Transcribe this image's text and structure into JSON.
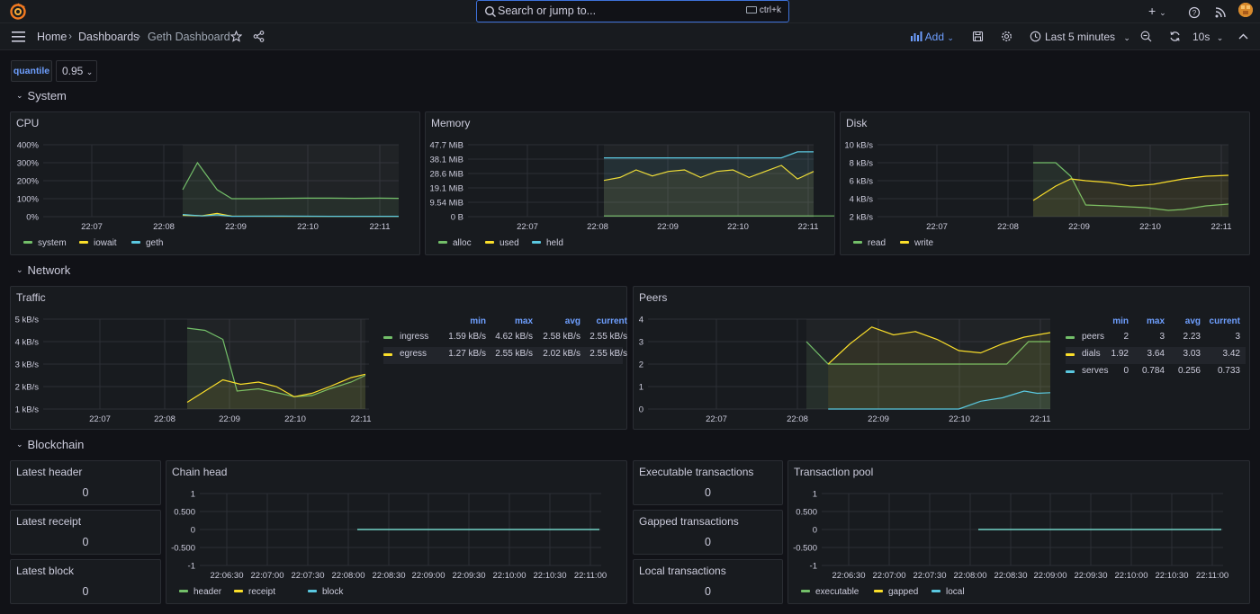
{
  "topbar": {
    "search_placeholder": "Search or jump to...",
    "search_shortcut": "ctrl+k",
    "new_label": "+",
    "help_icon": "help-icon",
    "news_icon": "rss-icon"
  },
  "nav": {
    "breadcrumbs": [
      "Home",
      "Dashboards",
      "Geth Dashboard"
    ],
    "add_label": "Add",
    "time_range": "Last 5 minutes",
    "refresh_interval": "10s"
  },
  "variables": {
    "label": "quantile",
    "value": "0.95"
  },
  "rows": {
    "system": "System",
    "network": "Network",
    "blockchain": "Blockchain"
  },
  "colors": {
    "green": "#73bf69",
    "yellow": "#fade2a",
    "blue": "#8ab8ff",
    "cyan": "#5ac8e0",
    "accent": "#6e9fff"
  },
  "panels": {
    "cpu": {
      "title": "CPU",
      "chart_data": {
        "type": "line",
        "x_ticks": [
          "22:07",
          "22:08",
          "22:09",
          "22:10",
          "22:11"
        ],
        "y_ticks": [
          "400%",
          "300%",
          "200%",
          "100%",
          "0%"
        ],
        "ylim": [
          0,
          400
        ],
        "series": [
          {
            "name": "system",
            "color": "#73bf69",
            "points": [
              [
                0.0,
                150
              ],
              [
                0.3,
                300
              ],
              [
                0.7,
                150
              ],
              [
                1.0,
                100
              ],
              [
                1.5,
                100
              ],
              [
                2,
                102
              ],
              [
                2.5,
                103
              ],
              [
                3,
                103
              ],
              [
                3.5,
                102
              ],
              [
                4,
                103
              ],
              [
                4.4,
                102
              ]
            ]
          },
          {
            "name": "iowait",
            "color": "#fade2a",
            "points": [
              [
                0.0,
                8
              ],
              [
                0.4,
                5
              ],
              [
                0.7,
                18
              ],
              [
                1.0,
                3
              ],
              [
                2,
                2
              ],
              [
                3,
                2
              ],
              [
                4.4,
                2
              ]
            ]
          },
          {
            "name": "geth",
            "color": "#5ac8e0",
            "points": [
              [
                0.0,
                12
              ],
              [
                0.4,
                4
              ],
              [
                0.7,
                10
              ],
              [
                1.0,
                2
              ],
              [
                2,
                3
              ],
              [
                3,
                2
              ],
              [
                4.4,
                2
              ]
            ]
          }
        ]
      },
      "legend": [
        "system",
        "iowait",
        "geth"
      ]
    },
    "memory": {
      "title": "Memory",
      "chart_data": {
        "type": "line",
        "x_ticks": [
          "22:07",
          "22:08",
          "22:09",
          "22:10",
          "22:11"
        ],
        "y_ticks": [
          "47.7 MiB",
          "38.1 MiB",
          "28.6 MiB",
          "19.1 MiB",
          "9.54 MiB",
          "0 B"
        ],
        "ylim": [
          0,
          47.7
        ],
        "series": [
          {
            "name": "alloc",
            "color": "#73bf69",
            "points": [
              [
                0,
                0.5
              ],
              [
                4.2,
                0.5
              ]
            ]
          },
          {
            "name": "used",
            "color": "#fade2a",
            "points": [
              [
                0,
                24
              ],
              [
                0.25,
                26
              ],
              [
                0.5,
                31
              ],
              [
                0.75,
                27
              ],
              [
                1,
                30
              ],
              [
                1.25,
                31
              ],
              [
                1.5,
                26
              ],
              [
                1.75,
                30
              ],
              [
                2,
                31
              ],
              [
                2.25,
                26
              ],
              [
                2.5,
                30
              ],
              [
                2.75,
                34
              ],
              [
                3,
                25
              ],
              [
                3.25,
                30
              ]
            ]
          },
          {
            "name": "held",
            "color": "#5ac8e0",
            "points": [
              [
                0,
                39
              ],
              [
                1,
                39
              ],
              [
                2,
                39
              ],
              [
                2.75,
                39
              ],
              [
                3,
                43
              ],
              [
                3.25,
                43
              ]
            ]
          }
        ]
      },
      "legend": [
        "alloc",
        "used",
        "held"
      ]
    },
    "disk": {
      "title": "Disk",
      "chart_data": {
        "type": "line",
        "x_ticks": [
          "22:07",
          "22:08",
          "22:09",
          "22:10",
          "22:11"
        ],
        "y_ticks": [
          "10 kB/s",
          "8 kB/s",
          "6 kB/s",
          "4 kB/s",
          "2 kB/s"
        ],
        "ylim": [
          2,
          10
        ],
        "series": [
          {
            "name": "read",
            "color": "#73bf69",
            "points": [
              [
                0,
                8
              ],
              [
                0.3,
                8
              ],
              [
                0.5,
                6.5
              ],
              [
                0.7,
                3.3
              ],
              [
                1,
                3.2
              ],
              [
                1.5,
                3
              ],
              [
                1.8,
                2.7
              ],
              [
                2.0,
                2.8
              ],
              [
                2.3,
                3.2
              ],
              [
                2.6,
                3.4
              ]
            ]
          },
          {
            "name": "write",
            "color": "#fade2a",
            "points": [
              [
                0,
                3.8
              ],
              [
                0.3,
                5.4
              ],
              [
                0.5,
                6.2
              ],
              [
                0.7,
                6
              ],
              [
                1,
                5.8
              ],
              [
                1.3,
                5.4
              ],
              [
                1.6,
                5.6
              ],
              [
                2.0,
                6.2
              ],
              [
                2.3,
                6.5
              ],
              [
                2.6,
                6.6
              ]
            ]
          }
        ]
      },
      "legend": [
        "read",
        "write"
      ]
    },
    "traffic": {
      "title": "Traffic",
      "chart_data": {
        "type": "line",
        "x_ticks": [
          "22:07",
          "22:08",
          "22:09",
          "22:10",
          "22:11"
        ],
        "y_ticks": [
          "5 kB/s",
          "4 kB/s",
          "3 kB/s",
          "2 kB/s",
          "1 kB/s"
        ],
        "ylim": [
          1,
          5
        ],
        "series": [
          {
            "name": "ingress",
            "color": "#73bf69",
            "points": [
              [
                0,
                4.6
              ],
              [
                0.25,
                4.5
              ],
              [
                0.5,
                4.1
              ],
              [
                0.7,
                1.8
              ],
              [
                1,
                1.9
              ],
              [
                1.3,
                1.7
              ],
              [
                1.5,
                1.55
              ],
              [
                1.75,
                1.6
              ],
              [
                2,
                1.9
              ],
              [
                2.3,
                2.2
              ],
              [
                2.5,
                2.5
              ]
            ]
          },
          {
            "name": "egress",
            "color": "#fade2a",
            "points": [
              [
                0,
                1.3
              ],
              [
                0.25,
                1.8
              ],
              [
                0.5,
                2.3
              ],
              [
                0.75,
                2.1
              ],
              [
                1,
                2.2
              ],
              [
                1.25,
                2.0
              ],
              [
                1.5,
                1.55
              ],
              [
                1.75,
                1.7
              ],
              [
                2,
                2.0
              ],
              [
                2.3,
                2.4
              ],
              [
                2.5,
                2.55
              ]
            ]
          }
        ]
      },
      "table": {
        "headers": [
          "min",
          "max",
          "avg",
          "current"
        ],
        "rows": [
          {
            "name": "ingress",
            "color": "#73bf69",
            "values": [
              "1.59 kB/s",
              "4.62 kB/s",
              "2.58 kB/s",
              "2.55 kB/s"
            ]
          },
          {
            "name": "egress",
            "color": "#fade2a",
            "values": [
              "1.27 kB/s",
              "2.55 kB/s",
              "2.02 kB/s",
              "2.55 kB/s"
            ]
          }
        ]
      }
    },
    "peers": {
      "title": "Peers",
      "chart_data": {
        "type": "line",
        "x_ticks": [
          "22:07",
          "22:08",
          "22:09",
          "22:10",
          "22:11"
        ],
        "y_ticks": [
          "4",
          "3",
          "2",
          "1",
          "0"
        ],
        "ylim": [
          0,
          4
        ],
        "series": [
          {
            "name": "peers",
            "color": "#73bf69",
            "points": [
              [
                0,
                3
              ],
              [
                0.25,
                2
              ],
              [
                0.5,
                2
              ],
              [
                1,
                2
              ],
              [
                1.5,
                2
              ],
              [
                2,
                2
              ],
              [
                2.3,
                2
              ],
              [
                2.55,
                3
              ],
              [
                2.8,
                3
              ]
            ]
          },
          {
            "name": "dials",
            "color": "#fade2a",
            "points": [
              [
                0.25,
                2
              ],
              [
                0.5,
                2.9
              ],
              [
                0.75,
                3.65
              ],
              [
                1.0,
                3.3
              ],
              [
                1.25,
                3.45
              ],
              [
                1.5,
                3.1
              ],
              [
                1.75,
                2.6
              ],
              [
                2.0,
                2.5
              ],
              [
                2.25,
                2.9
              ],
              [
                2.5,
                3.2
              ],
              [
                2.8,
                3.4
              ]
            ]
          },
          {
            "name": "serves",
            "color": "#5ac8e0",
            "points": [
              [
                0.25,
                0
              ],
              [
                1.5,
                0
              ],
              [
                1.75,
                0
              ],
              [
                2.0,
                0.35
              ],
              [
                2.25,
                0.5
              ],
              [
                2.5,
                0.8
              ],
              [
                2.65,
                0.7
              ],
              [
                2.8,
                0.73
              ]
            ]
          }
        ]
      },
      "table": {
        "headers": [
          "min",
          "max",
          "avg",
          "current"
        ],
        "rows": [
          {
            "name": "peers",
            "color": "#73bf69",
            "values": [
              "2",
              "3",
              "2.23",
              "3"
            ]
          },
          {
            "name": "dials",
            "color": "#fade2a",
            "values": [
              "1.92",
              "3.64",
              "3.03",
              "3.42"
            ]
          },
          {
            "name": "serves",
            "color": "#5ac8e0",
            "values": [
              "0",
              "0.784",
              "0.256",
              "0.733"
            ]
          }
        ]
      }
    },
    "latest_header": {
      "title": "Latest header",
      "value": "0"
    },
    "latest_receipt": {
      "title": "Latest receipt",
      "value": "0"
    },
    "latest_block": {
      "title": "Latest block",
      "value": "0"
    },
    "executable_tx": {
      "title": "Executable transactions",
      "value": "0"
    },
    "gapped_tx": {
      "title": "Gapped transactions",
      "value": "0"
    },
    "local_tx": {
      "title": "Local transactions",
      "value": "0"
    },
    "chain_head": {
      "title": "Chain head",
      "chart_data": {
        "type": "line",
        "x_ticks": [
          "22:06:30",
          "22:07:00",
          "22:07:30",
          "22:08:00",
          "22:08:30",
          "22:09:00",
          "22:09:30",
          "22:10:00",
          "22:10:30",
          "22:11:00"
        ],
        "y_ticks": [
          "1",
          "0.500",
          "0",
          "-0.500",
          "-1"
        ],
        "ylim": [
          -1,
          1
        ],
        "series": [
          {
            "name": "header",
            "color": "#73bf69",
            "values": [
              0
            ]
          },
          {
            "name": "receipt",
            "color": "#fade2a",
            "values": [
              0
            ]
          },
          {
            "name": "block",
            "color": "#5ac8e0",
            "values": [
              0
            ]
          }
        ]
      },
      "legend": [
        "header",
        "receipt",
        "block"
      ]
    },
    "tx_pool": {
      "title": "Transaction pool",
      "chart_data": {
        "type": "line",
        "x_ticks": [
          "22:06:30",
          "22:07:00",
          "22:07:30",
          "22:08:00",
          "22:08:30",
          "22:09:00",
          "22:09:30",
          "22:10:00",
          "22:10:30",
          "22:11:00"
        ],
        "y_ticks": [
          "1",
          "0.500",
          "0",
          "-0.500",
          "-1"
        ],
        "ylim": [
          -1,
          1
        ],
        "series": [
          {
            "name": "executable",
            "color": "#73bf69",
            "values": [
              0
            ]
          },
          {
            "name": "gapped",
            "color": "#fade2a",
            "values": [
              0
            ]
          },
          {
            "name": "local",
            "color": "#5ac8e0",
            "values": [
              0
            ]
          }
        ]
      },
      "legend": [
        "executable",
        "gapped",
        "local"
      ]
    }
  }
}
